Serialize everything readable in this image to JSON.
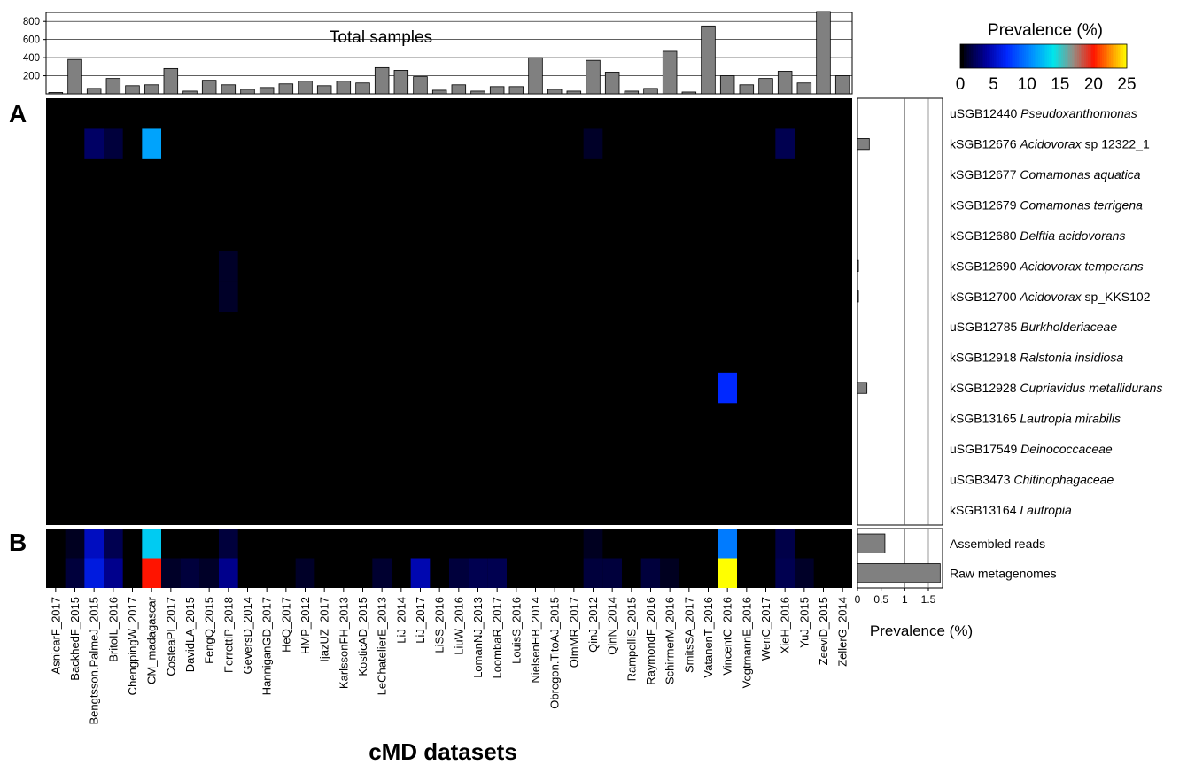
{
  "chart_data": {
    "type": "heatmap",
    "panel_labels": [
      "A",
      "B"
    ],
    "xlabel": "cMD datasets",
    "datasets": [
      "AsnicarF_2017",
      "BackhedF_2015",
      "Bengtsson.PalmeJ_2015",
      "BritoIL_2016",
      "ChengpingW_2017",
      "CM_madagascar",
      "CosteaPI_2017",
      "DavidLA_2015",
      "FengQ_2015",
      "FerrettiP_2018",
      "GeversD_2014",
      "HanniganGD_2017",
      "HeQ_2017",
      "HMP_2012",
      "IjazUZ_2017",
      "KarlssonFH_2013",
      "KosticAD_2015",
      "LeChatelierE_2013",
      "LiJ_2014",
      "LiJ_2017",
      "LiSS_2016",
      "LiuW_2016",
      "LomanNJ_2013",
      "LoombaR_2017",
      "LouisS_2016",
      "NielsenHB_2014",
      "Obregon.TitoAJ_2015",
      "OlmMR_2017",
      "QinJ_2012",
      "QinN_2014",
      "RampelliS_2015",
      "RaymondF_2016",
      "SchirmerM_2016",
      "SmitsSA_2017",
      "VatanenT_2016",
      "VincentC_2016",
      "VogtmannE_2016",
      "WenC_2017",
      "XieH_2016",
      "YuJ_2015",
      "ZeeviD_2015",
      "ZellerG_2014"
    ],
    "total_samples": {
      "label": "Total samples",
      "ylim": [
        0,
        900
      ],
      "ticks": [
        200,
        400,
        600,
        800
      ],
      "values": [
        15,
        380,
        60,
        170,
        90,
        100,
        280,
        30,
        150,
        100,
        50,
        70,
        110,
        140,
        90,
        140,
        120,
        290,
        260,
        190,
        40,
        100,
        30,
        80,
        80,
        400,
        50,
        30,
        370,
        240,
        30,
        60,
        470,
        20,
        750,
        200,
        100,
        170,
        250,
        120,
        910,
        200
      ]
    },
    "taxa": [
      {
        "code": "uSGB12440",
        "name": "Pseudoxanthomonas",
        "suffix": ""
      },
      {
        "code": "kSGB12676",
        "name": "Acidovorax",
        "suffix": " sp 12322_1"
      },
      {
        "code": "kSGB12677",
        "name": "Comamonas aquatica",
        "suffix": ""
      },
      {
        "code": "kSGB12679",
        "name": "Comamonas terrigena",
        "suffix": ""
      },
      {
        "code": "kSGB12680",
        "name": "Delftia acidovorans",
        "suffix": ""
      },
      {
        "code": "kSGB12690",
        "name": "Acidovorax temperans",
        "suffix": ""
      },
      {
        "code": "kSGB12700",
        "name": "Acidovorax",
        "suffix": " sp_KKS102"
      },
      {
        "code": "uSGB12785",
        "name": "Burkholderiaceae",
        "suffix": ""
      },
      {
        "code": "kSGB12918",
        "name": "Ralstonia insidiosa",
        "suffix": ""
      },
      {
        "code": "kSGB12928",
        "name": "Cupriavidus metallidurans",
        "suffix": ""
      },
      {
        "code": "kSGB13165",
        "name": "Lautropia mirabilis",
        "suffix": ""
      },
      {
        "code": "uSGB17549",
        "name": "Deinococcaceae",
        "suffix": ""
      },
      {
        "code": "uSGB3473",
        "name": "Chitinophagaceae",
        "suffix": ""
      },
      {
        "code": "kSGB13164",
        "name": "Lautropia",
        "suffix": ""
      }
    ],
    "heatmap_A_nonzero": [
      {
        "taxon": 1,
        "dataset": 2,
        "value": 2.5
      },
      {
        "taxon": 1,
        "dataset": 3,
        "value": 1.5
      },
      {
        "taxon": 1,
        "dataset": 5,
        "value": 11.5
      },
      {
        "taxon": 1,
        "dataset": 28,
        "value": 1.0
      },
      {
        "taxon": 1,
        "dataset": 38,
        "value": 2.0
      },
      {
        "taxon": 5,
        "dataset": 9,
        "value": 1.0
      },
      {
        "taxon": 6,
        "dataset": 9,
        "value": 1.0
      },
      {
        "taxon": 9,
        "dataset": 35,
        "value": 7.0
      }
    ],
    "rows_B": [
      "Assembled reads",
      "Raw metagenomes"
    ],
    "heatmap_B": [
      [
        0,
        0.8,
        5,
        2,
        0,
        13,
        0,
        0,
        0,
        1.5,
        0,
        0,
        0,
        0,
        0,
        0,
        0,
        0,
        0,
        0,
        0,
        0,
        0,
        0,
        0,
        0,
        0,
        0,
        0.8,
        0,
        0,
        0,
        0,
        0,
        0,
        10,
        0,
        0,
        1.8,
        0,
        0,
        0
      ],
      [
        0,
        1.5,
        6,
        3.5,
        0,
        20,
        1,
        1.5,
        1,
        3.5,
        0,
        0,
        0,
        1,
        0,
        0,
        0,
        1.2,
        0,
        4.5,
        0,
        1.5,
        2,
        2,
        0,
        0,
        0,
        0,
        1.5,
        1.5,
        0,
        1.5,
        0.8,
        0,
        0,
        25,
        0,
        0,
        2,
        1,
        0,
        0
      ]
    ],
    "prevalence_bars": {
      "xlabel": "Prevalence (%)",
      "xlim": [
        0,
        1.8
      ],
      "ticks": [
        "0",
        "0.5",
        "1",
        "1.5"
      ],
      "taxa_values": [
        0,
        0.25,
        0,
        0,
        0,
        0.02,
        0.02,
        0,
        0,
        0.2,
        0,
        0,
        0,
        0
      ],
      "b_values": [
        0.58,
        1.75
      ]
    },
    "colorbar": {
      "title": "Prevalence (%)",
      "range": [
        0,
        25
      ],
      "ticks": [
        "0",
        "5",
        "10",
        "15",
        "20",
        "25"
      ]
    }
  }
}
